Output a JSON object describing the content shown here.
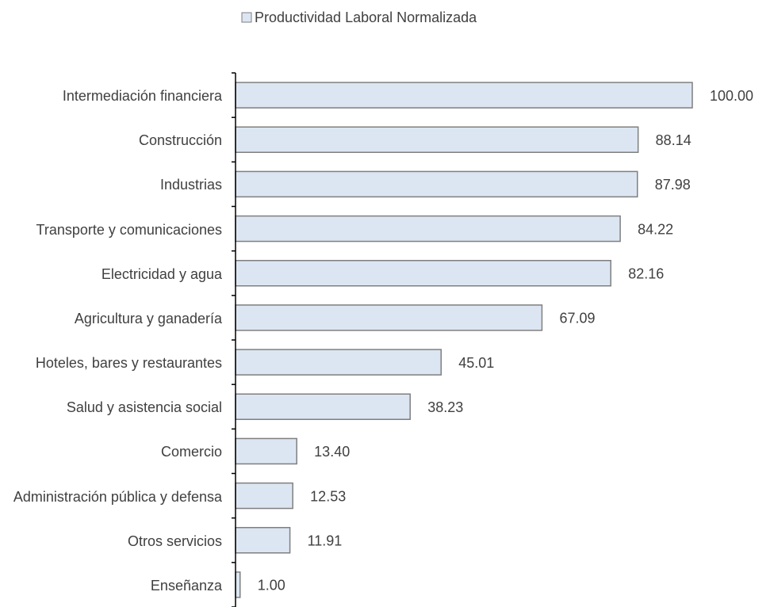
{
  "chart_data": {
    "type": "barh",
    "legend": "Productividad Laboral Normalizada",
    "categories": [
      "Intermediación financiera",
      "Construcción",
      "Industrias",
      "Transporte y comunicaciones",
      "Electricidad y agua",
      "Agricultura y ganadería",
      "Hoteles, bares y restaurantes",
      "Salud y asistencia social",
      "Comercio",
      "Administración pública y defensa",
      "Otros servicios",
      "Enseñanza"
    ],
    "values": [
      100,
      88.14,
      87.98,
      84.22,
      82.16,
      67.09,
      45.01,
      38.23,
      13.4,
      12.53,
      11.91,
      1
    ],
    "value_labels": [
      "100.00",
      "88.14",
      "87.98",
      "84.22",
      "82.16",
      "67.09",
      "45.01",
      "38.23",
      "13.40",
      "12.53",
      "11.91",
      "1.00"
    ],
    "color": "#dce6f2",
    "edge_color": "#7f7f7f",
    "xlim": [
      0,
      100
    ]
  }
}
